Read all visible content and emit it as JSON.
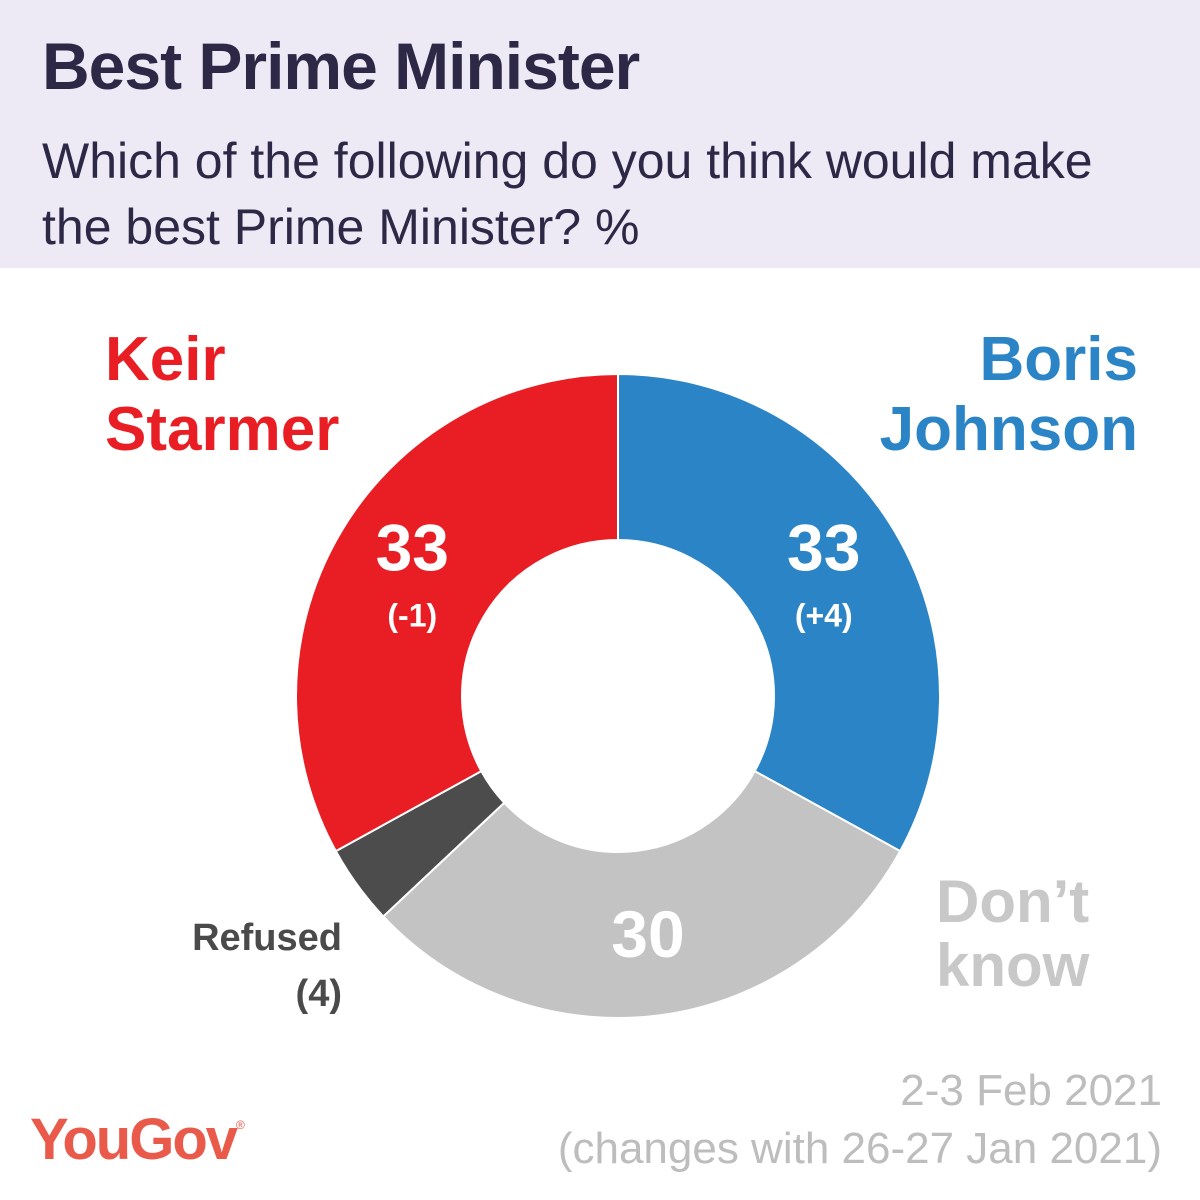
{
  "header": {
    "title": "Best Prime Minister",
    "subtitle": "Which of the following do you think would make the best Prime Minister? %"
  },
  "labels": {
    "keir": "Keir\nStarmer",
    "boris": "Boris\nJohnson",
    "dont_know": "Don’t\nknow",
    "refused_name": "Refused",
    "refused_value": "(4)"
  },
  "footer": {
    "date": "2-3 Feb 2021",
    "changes": "(changes with 26-27 Jan 2021)",
    "logo": "YouGov",
    "logo_mark": "®"
  },
  "colors": {
    "boris": "#2b84c6",
    "keir": "#e91e24",
    "dont_know": "#c3c3c3",
    "refused": "#4c4c4c",
    "header_bg": "#edeaf5"
  },
  "chart_data": {
    "type": "pie",
    "title": "Best Prime Minister",
    "subtitle": "Which of the following do you think would make the best Prime Minister? %",
    "donut": true,
    "start": "top",
    "direction": "clockwise",
    "slices": [
      {
        "name": "Boris Johnson",
        "value": 33,
        "value_label": "33",
        "change": "(+4)",
        "color": "#2b84c6"
      },
      {
        "name": "Don’t know",
        "value": 30,
        "value_label": "30",
        "change": "",
        "color": "#c3c3c3"
      },
      {
        "name": "Refused",
        "value": 4,
        "value_label": "",
        "change": "",
        "color": "#4c4c4c"
      },
      {
        "name": "Keir Starmer",
        "value": 33,
        "value_label": "33",
        "change": "(-1)",
        "color": "#e91e24"
      }
    ]
  }
}
